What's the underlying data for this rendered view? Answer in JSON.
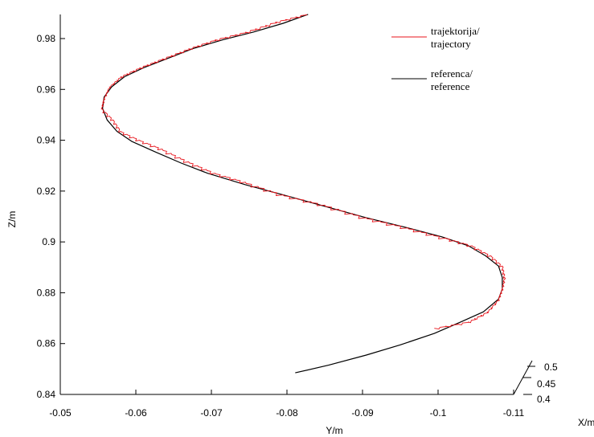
{
  "chart_data": {
    "type": "line",
    "xlabel": "X/m",
    "ylabel": "Y/m",
    "zlabel": "Z/m",
    "y_ticks": [
      "-0.05",
      "-0.06",
      "-0.07",
      "-0.08",
      "-0.09",
      "-0.1",
      "-0.11"
    ],
    "z_ticks": [
      "0.84",
      "0.86",
      "0.88",
      "0.9",
      "0.92",
      "0.94",
      "0.96",
      "0.98"
    ],
    "x_ticks": [
      "0.4",
      "0.45",
      "0.5"
    ],
    "ylim": [
      -0.05,
      -0.11
    ],
    "zlim": [
      0.84,
      0.99
    ],
    "legend_position": "top-right",
    "series": [
      {
        "name": "trajektorija/ trajectory",
        "legend_lines": [
          "trajektorija/",
          "trajectory"
        ],
        "color": "#e8141b",
        "points": [
          [
            -0.0995,
            0.866
          ],
          [
            -0.104,
            0.8685
          ],
          [
            -0.1065,
            0.8725
          ],
          [
            -0.108,
            0.8775
          ],
          [
            -0.1085,
            0.8815
          ],
          [
            -0.1088,
            0.886
          ],
          [
            -0.1085,
            0.8905
          ],
          [
            -0.107,
            0.8945
          ],
          [
            -0.1045,
            0.8985
          ],
          [
            -0.101,
            0.9015
          ],
          [
            -0.096,
            0.9055
          ],
          [
            -0.0905,
            0.9095
          ],
          [
            -0.085,
            0.9145
          ],
          [
            -0.0795,
            0.9185
          ],
          [
            -0.0745,
            0.9235
          ],
          [
            -0.0705,
            0.927
          ],
          [
            -0.067,
            0.9315
          ],
          [
            -0.0635,
            0.9365
          ],
          [
            -0.0605,
            0.94
          ],
          [
            -0.058,
            0.9435
          ],
          [
            -0.057,
            0.948
          ],
          [
            -0.0555,
            0.9525
          ],
          [
            -0.0558,
            0.9565
          ],
          [
            -0.0565,
            0.961
          ],
          [
            -0.058,
            0.965
          ],
          [
            -0.0605,
            0.9685
          ],
          [
            -0.0635,
            0.972
          ],
          [
            -0.067,
            0.976
          ],
          [
            -0.0705,
            0.9795
          ],
          [
            -0.0745,
            0.9825
          ],
          [
            -0.0785,
            0.9865
          ],
          [
            -0.0825,
            0.9895
          ]
        ]
      },
      {
        "name": "referenca/ reference",
        "legend_lines": [
          "referenca/",
          "reference"
        ],
        "color": "#000000",
        "points": [
          [
            -0.0811,
            0.8485
          ],
          [
            -0.0855,
            0.8515
          ],
          [
            -0.0905,
            0.8555
          ],
          [
            -0.095,
            0.8595
          ],
          [
            -0.0995,
            0.864
          ],
          [
            -0.103,
            0.8685
          ],
          [
            -0.106,
            0.8725
          ],
          [
            -0.108,
            0.8775
          ],
          [
            -0.1085,
            0.8815
          ],
          [
            -0.1085,
            0.886
          ],
          [
            -0.108,
            0.8905
          ],
          [
            -0.1063,
            0.8945
          ],
          [
            -0.104,
            0.8985
          ],
          [
            -0.1005,
            0.902
          ],
          [
            -0.096,
            0.9055
          ],
          [
            -0.0905,
            0.9095
          ],
          [
            -0.085,
            0.914
          ],
          [
            -0.0795,
            0.9185
          ],
          [
            -0.0745,
            0.9225
          ],
          [
            -0.0695,
            0.927
          ],
          [
            -0.066,
            0.931
          ],
          [
            -0.0625,
            0.9355
          ],
          [
            -0.0595,
            0.9395
          ],
          [
            -0.0575,
            0.9435
          ],
          [
            -0.0562,
            0.948
          ],
          [
            -0.0556,
            0.9525
          ],
          [
            -0.0558,
            0.957
          ],
          [
            -0.0568,
            0.961
          ],
          [
            -0.0585,
            0.965
          ],
          [
            -0.061,
            0.9685
          ],
          [
            -0.0645,
            0.9725
          ],
          [
            -0.0675,
            0.976
          ],
          [
            -0.0715,
            0.9795
          ],
          [
            -0.0755,
            0.9825
          ],
          [
            -0.0795,
            0.986
          ],
          [
            -0.0828,
            0.9895
          ]
        ]
      }
    ]
  }
}
